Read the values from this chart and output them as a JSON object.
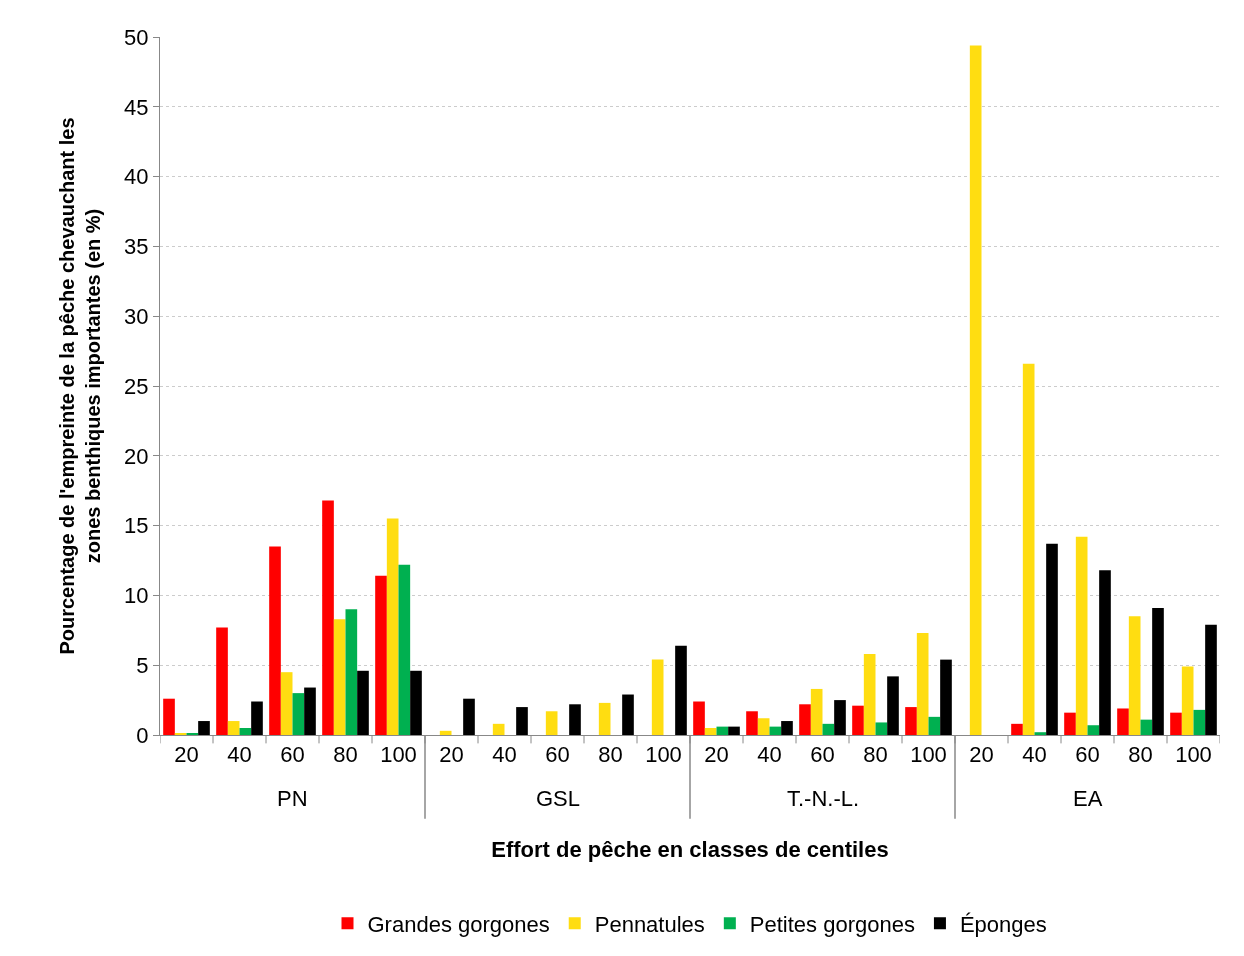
{
  "chart_data": {
    "type": "bar",
    "xlabel": "Effort de pêche en classes de centiles",
    "ylabel": "Pourcentage de l'empreinte de la pêche chevauchant les zones benthiques importantes (en %)",
    "categories": [
      "20",
      "40",
      "60",
      "80",
      "100",
      "20",
      "40",
      "60",
      "80",
      "100",
      "20",
      "40",
      "60",
      "80",
      "100",
      "20",
      "40",
      "60",
      "80",
      "100"
    ],
    "annotations": [
      "PN",
      "GSL",
      "T.-N.-L.",
      "EA"
    ],
    "series": [
      {
        "name": "Grandes gorgones",
        "color": "#ff0000",
        "values": [
          2.6,
          7.7,
          13.5,
          16.8,
          11.4,
          0,
          0,
          0,
          0,
          0,
          2.4,
          1.7,
          2.2,
          2.1,
          2.0,
          0,
          0.8,
          1.6,
          1.9,
          1.6
        ]
      },
      {
        "name": "Pennatules",
        "color": "#ffdd11",
        "values": [
          0.1,
          1.0,
          4.5,
          8.3,
          15.5,
          0.3,
          0.8,
          1.7,
          2.3,
          5.4,
          0.5,
          1.2,
          3.3,
          5.8,
          7.3,
          49.4,
          26.6,
          14.2,
          8.5,
          4.9
        ]
      },
      {
        "name": "Petites gorgones",
        "color": "#00b050",
        "values": [
          0.1,
          0.5,
          3.0,
          9.0,
          12.2,
          0,
          0,
          0,
          0,
          0,
          0.6,
          0.6,
          0.8,
          0.9,
          1.3,
          0,
          0.2,
          0.7,
          1.1,
          1.8
        ]
      },
      {
        "name": "Éponges",
        "color": "#000000",
        "values": [
          1.0,
          2.4,
          3.4,
          4.6,
          4.6,
          2.6,
          2.0,
          2.2,
          2.9,
          6.4,
          0.6,
          1.0,
          2.5,
          4.2,
          5.4,
          0,
          13.7,
          11.8,
          9.1,
          7.9
        ]
      }
    ],
    "ylim": [
      0,
      50
    ],
    "yticks": [
      0,
      5,
      10,
      15,
      20,
      25,
      30,
      35,
      40,
      45,
      50
    ],
    "grid": "y",
    "legend": "bottom"
  }
}
